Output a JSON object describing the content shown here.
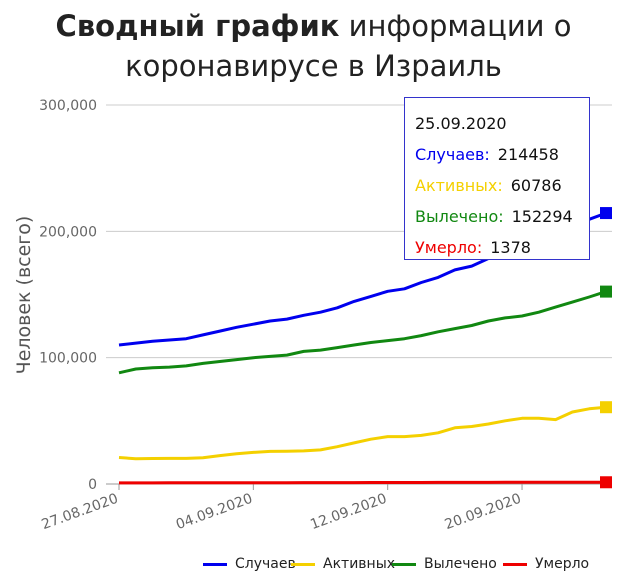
{
  "title_bold": "Сводный график",
  "title_rest_line1": "информации о",
  "title_line2": "коронавирусе в Израиль",
  "colors": {
    "cases": "#0000ee",
    "active": "#f4d000",
    "recovered": "#118811",
    "deaths": "#ee0000",
    "grid": "#cccccc",
    "axis_text": "#666666"
  },
  "tooltip": {
    "date": "25.09.2020",
    "cases_label": "Случаев:",
    "cases_value": "214458",
    "active_label": "Активных:",
    "active_value": "60786",
    "recovered_label": "Вылечено:",
    "recovered_value": "152294",
    "deaths_label": "Умерло:",
    "deaths_value": "1378"
  },
  "chart_data": {
    "type": "line",
    "ylabel": "Человек (всего)",
    "xlabel": "",
    "ylim": [
      0,
      300000
    ],
    "yticks": [
      0,
      100000,
      200000,
      300000
    ],
    "ytick_labels": [
      "0",
      "100,000",
      "200,000",
      "300,000"
    ],
    "xticks": [
      "27.08.2020",
      "04.09.2020",
      "12.09.2020",
      "20.09.2020"
    ],
    "x": [
      "27.08.2020",
      "28.08.2020",
      "29.08.2020",
      "30.08.2020",
      "31.08.2020",
      "01.09.2020",
      "02.09.2020",
      "03.09.2020",
      "04.09.2020",
      "05.09.2020",
      "06.09.2020",
      "07.09.2020",
      "08.09.2020",
      "09.09.2020",
      "10.09.2020",
      "11.09.2020",
      "12.09.2020",
      "13.09.2020",
      "14.09.2020",
      "15.09.2020",
      "16.09.2020",
      "17.09.2020",
      "18.09.2020",
      "19.09.2020",
      "20.09.2020",
      "21.09.2020",
      "22.09.2020",
      "23.09.2020",
      "24.09.2020",
      "25.09.2020"
    ],
    "grid": true,
    "legend_position": "bottom",
    "series": [
      {
        "name": "Случаев",
        "key": "cases",
        "values": [
          110000,
          111500,
          113000,
          114000,
          115000,
          118000,
          121000,
          124000,
          126500,
          129000,
          130500,
          133500,
          136000,
          139500,
          144500,
          148500,
          152500,
          154500,
          159500,
          163500,
          169500,
          172500,
          178500,
          184500,
          189000,
          192500,
          196000,
          203000,
          209500,
          214458
        ]
      },
      {
        "name": "Активных",
        "key": "active",
        "values": [
          21000,
          20000,
          20200,
          20300,
          20300,
          20800,
          22500,
          24000,
          25000,
          25800,
          26000,
          26200,
          27000,
          29500,
          32500,
          35500,
          37500,
          37500,
          38500,
          40500,
          44500,
          45500,
          47500,
          50000,
          52000,
          52000,
          51000,
          57000,
          59500,
          60786
        ]
      },
      {
        "name": "Вылечено",
        "key": "recovered",
        "values": [
          88000,
          91000,
          92000,
          92500,
          93500,
          95500,
          97000,
          98500,
          100000,
          101000,
          102000,
          105000,
          106000,
          108000,
          110000,
          112000,
          113500,
          115000,
          117500,
          120500,
          123000,
          125500,
          129000,
          131500,
          133000,
          136000,
          140000,
          144000,
          148000,
          152294
        ]
      },
      {
        "name": "Умерло",
        "key": "deaths",
        "values": [
          860,
          880,
          900,
          920,
          940,
          960,
          980,
          1000,
          1020,
          1040,
          1060,
          1080,
          1100,
          1120,
          1140,
          1160,
          1180,
          1200,
          1220,
          1240,
          1260,
          1280,
          1300,
          1310,
          1320,
          1330,
          1340,
          1355,
          1366,
          1378
        ]
      }
    ]
  }
}
